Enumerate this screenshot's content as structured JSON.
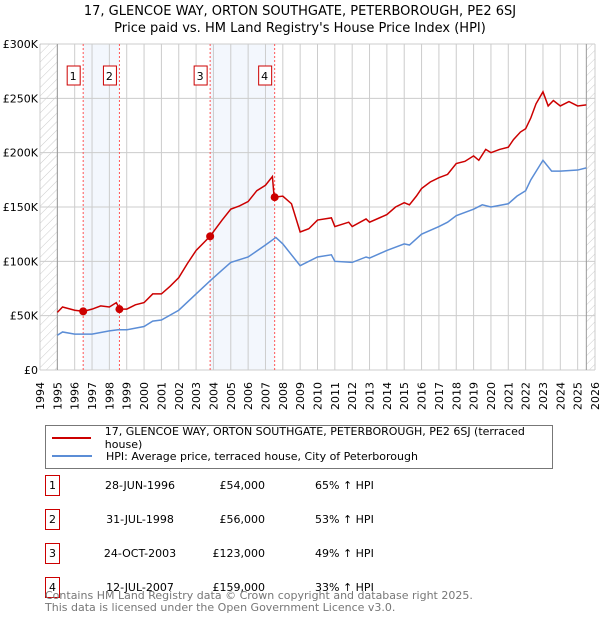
{
  "chart_data": {
    "type": "line",
    "title": "17, GLENCOE WAY, ORTON SOUTHGATE, PETERBOROUGH, PE2 6SJ",
    "subtitle": "Price paid vs. HM Land Registry's House Price Index (HPI)",
    "xlim": [
      1994,
      2026
    ],
    "ylim": [
      0,
      300000
    ],
    "x_ticks": [
      "1994",
      "1995",
      "1996",
      "1997",
      "1998",
      "1999",
      "2000",
      "2001",
      "2002",
      "2003",
      "2004",
      "2005",
      "2006",
      "2007",
      "2008",
      "2009",
      "2010",
      "2011",
      "2012",
      "2013",
      "2014",
      "2015",
      "2016",
      "2017",
      "2018",
      "2019",
      "2020",
      "2021",
      "2022",
      "2023",
      "2024",
      "2025",
      "2026"
    ],
    "y_ticks": [
      {
        "v": 0,
        "label": "£0"
      },
      {
        "v": 50000,
        "label": "£50K"
      },
      {
        "v": 100000,
        "label": "£100K"
      },
      {
        "v": 150000,
        "label": "£150K"
      },
      {
        "v": 200000,
        "label": "£200K"
      },
      {
        "v": 250000,
        "label": "£250K"
      },
      {
        "v": 300000,
        "label": "£300K"
      }
    ],
    "grid": true,
    "series": [
      {
        "name": "17, GLENCOE WAY, ORTON SOUTHGATE, PETERBOROUGH, PE2 6SJ (terraced house)",
        "color": "#cc0000",
        "x": [
          1995,
          1995.3,
          1996,
          1996.5,
          1997,
          1997.5,
          1998,
          1998.4,
          1998.6,
          1999,
          1999.5,
          2000,
          2000.5,
          2001,
          2001.5,
          2002,
          2002.5,
          2003,
          2003.8,
          2004.5,
          2005,
          2005.5,
          2006,
          2006.5,
          2007,
          2007.4,
          2007.5,
          2008,
          2008.5,
          2009,
          2009.5,
          2010,
          2010.8,
          2011,
          2011.8,
          2012,
          2012.8,
          2013,
          2014,
          2014.5,
          2015,
          2015.3,
          2015.7,
          2016,
          2016.5,
          2017,
          2017.5,
          2018,
          2018.5,
          2019,
          2019.3,
          2019.7,
          2020,
          2020.5,
          2021,
          2021.3,
          2021.7,
          2022,
          2022.3,
          2022.6,
          2023,
          2023.3,
          2023.6,
          2024,
          2024.5,
          2025,
          2025.5
        ],
        "y": [
          53000,
          58000,
          55000,
          54000,
          56000,
          59000,
          58000,
          62000,
          56000,
          56000,
          60000,
          62000,
          70000,
          70000,
          77000,
          85000,
          98000,
          110000,
          123000,
          138000,
          148000,
          151000,
          155000,
          165000,
          170000,
          178000,
          159000,
          160000,
          153000,
          127000,
          130000,
          138000,
          140000,
          132000,
          136000,
          132000,
          139000,
          136000,
          143000,
          150000,
          154000,
          152000,
          160000,
          167000,
          173000,
          177000,
          180000,
          190000,
          192000,
          197000,
          193000,
          203000,
          200000,
          203000,
          205000,
          212000,
          219000,
          222000,
          232000,
          245000,
          256000,
          243000,
          248000,
          243000,
          247000,
          243000,
          244000
        ]
      },
      {
        "name": "HPI: Average price, terraced house, City of Peterborough",
        "color": "#5b8dd6",
        "x": [
          1995,
          1995.3,
          1996,
          1997,
          1998,
          1998.5,
          1999,
          2000,
          2000.5,
          2001,
          2002,
          2003,
          2003.8,
          2004.5,
          2005,
          2006,
          2007,
          2007.6,
          2008,
          2009,
          2010,
          2010.8,
          2011,
          2012,
          2012.8,
          2013,
          2014,
          2015,
          2015.3,
          2016,
          2017,
          2017.5,
          2018,
          2019,
          2019.5,
          2020,
          2021,
          2021.5,
          2022,
          2022.3,
          2023,
          2023.5,
          2024,
          2025,
          2025.5
        ],
        "y": [
          32000,
          35000,
          33000,
          33000,
          36000,
          37000,
          37000,
          40000,
          45000,
          46000,
          55000,
          70000,
          82000,
          92000,
          99000,
          104000,
          115000,
          122000,
          116000,
          96000,
          104000,
          106000,
          100000,
          99000,
          104000,
          103000,
          110000,
          116000,
          115000,
          125000,
          132000,
          136000,
          142000,
          148000,
          152000,
          150000,
          153000,
          160000,
          165000,
          175000,
          193000,
          183000,
          183000,
          184000,
          186000
        ]
      }
    ],
    "sales": [
      {
        "n": "1",
        "x": 1996.49,
        "y": 54000,
        "date": "28-JUN-1996",
        "price": "£54,000",
        "hpi": "65% ↑ HPI"
      },
      {
        "n": "2",
        "x": 1998.58,
        "y": 56000,
        "date": "31-JUL-1998",
        "price": "£56,000",
        "hpi": "53% ↑ HPI"
      },
      {
        "n": "3",
        "x": 2003.81,
        "y": 123000,
        "date": "24-OCT-2003",
        "price": "£123,000",
        "hpi": "49% ↑ HPI"
      },
      {
        "n": "4",
        "x": 2007.53,
        "y": 159000,
        "date": "12-JUL-2007",
        "price": "£159,000",
        "hpi": "33% ↑ HPI"
      }
    ],
    "shaded_ranges": [
      [
        1996.49,
        1998.58
      ],
      [
        2003.81,
        2007.53
      ]
    ],
    "data_range": [
      1995,
      2025.5
    ],
    "legend_position": "bottom"
  },
  "footer": {
    "line1": "Contains HM Land Registry data © Crown copyright and database right 2025.",
    "line2": "This data is licensed under the Open Government Licence v3.0."
  }
}
